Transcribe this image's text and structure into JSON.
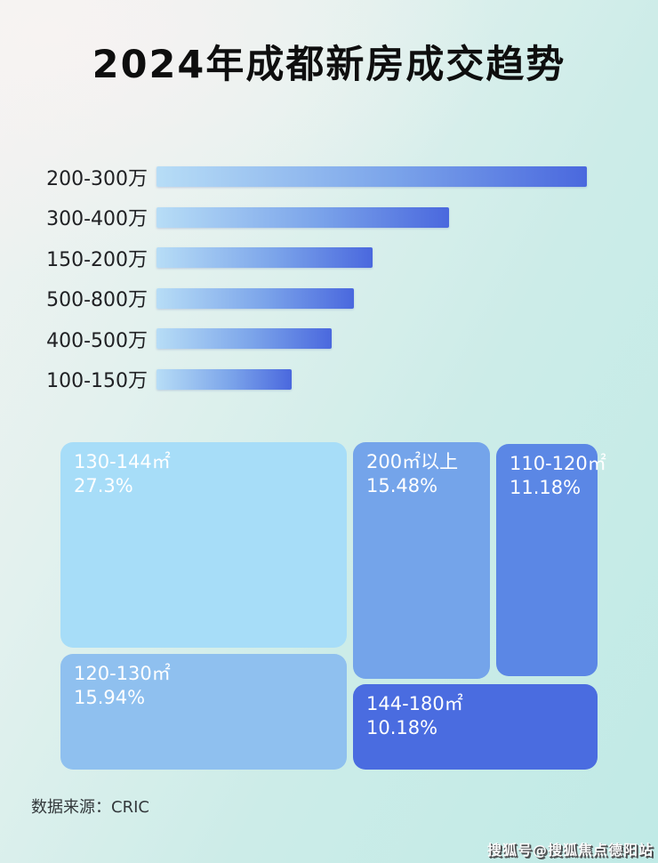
{
  "title": "2024年成都新房成交趋势",
  "footer": {
    "source_label": "数据来源：CRIC"
  },
  "watermark": "搜狐号@搜狐焦点德阳站",
  "colors": {
    "bar_gradient_start": "#b7ddf6",
    "bar_gradient_end": "#4a68de",
    "tile_130_144": "#a7ddf8",
    "tile_120_130": "#8fc0ef",
    "tile_200_plus": "#74a4ea",
    "tile_110_120": "#5b87e5",
    "tile_144_180": "#4a6ce0",
    "background_left": "#f2f2f1",
    "background_right": "#c0eae6",
    "label_text": "#202124",
    "tile_text": "#ffffff"
  },
  "chart_data": [
    {
      "type": "bar",
      "orientation": "horizontal",
      "title": "2024年成都新房成交趋势",
      "categories": [
        "200-300万",
        "300-400万",
        "150-200万",
        "500-800万",
        "400-500万",
        "100-150万"
      ],
      "values": [
        100,
        68,
        50.3,
        45.8,
        40.8,
        31.5
      ],
      "value_unit": "relative bar length, percent of longest bar (no numeric axis shown)",
      "xlabel": "",
      "ylabel": "",
      "grid": false,
      "legend": false
    },
    {
      "type": "treemap",
      "items": [
        {
          "label": "130-144㎡",
          "value_pct": 27.3,
          "display": "27.3%"
        },
        {
          "label": "120-130㎡",
          "value_pct": 15.94,
          "display": "15.94%"
        },
        {
          "label": "200㎡以上",
          "value_pct": 15.48,
          "display": "15.48%"
        },
        {
          "label": "110-120㎡",
          "value_pct": 11.18,
          "display": "11.18%"
        },
        {
          "label": "144-180㎡",
          "value_pct": 10.18,
          "display": "10.18%"
        }
      ]
    }
  ]
}
